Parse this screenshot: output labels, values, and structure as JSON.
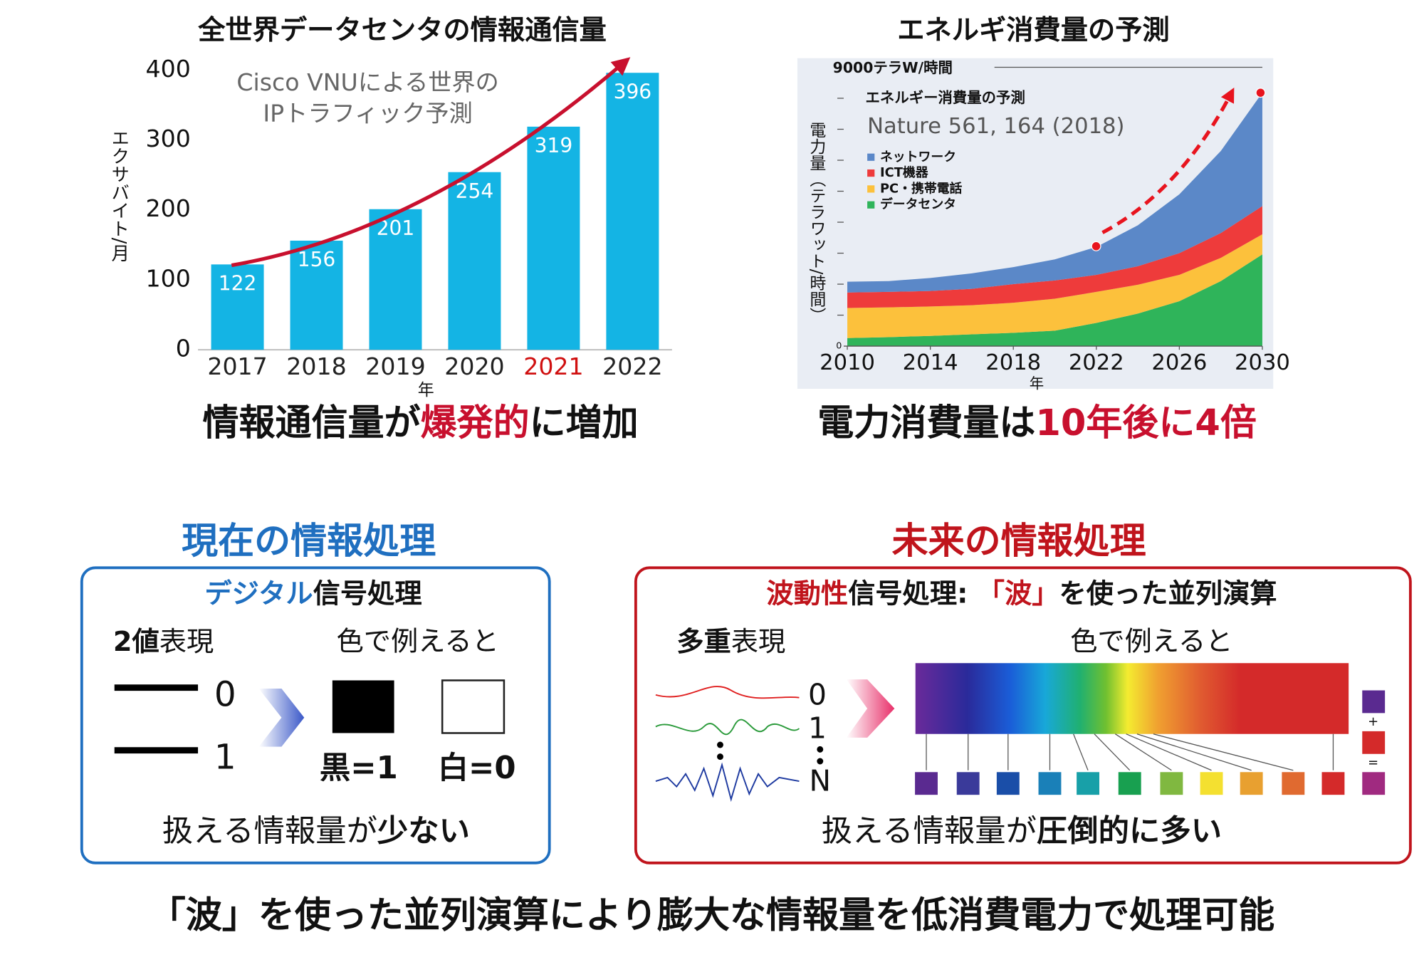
{
  "chart_data": [
    {
      "type": "bar",
      "title": "全世界データセンタの情報通信量",
      "annotation": [
        "Cisco VNUによる世界の",
        "IPトラフィック予測"
      ],
      "categories": [
        "2017",
        "2018",
        "2019",
        "2020",
        "2021",
        "2022"
      ],
      "values": [
        122,
        156,
        201,
        254,
        319,
        396
      ],
      "category_label_colors": [
        "#222",
        "#222",
        "#222",
        "#222",
        "#d01010",
        "#222"
      ],
      "color": "#14b4e4",
      "ylim": [
        0,
        400
      ],
      "yticks": [
        0,
        100,
        200,
        300,
        400
      ],
      "ylabel": "エクサバイト/月",
      "xlabel": "年"
    },
    {
      "type": "area",
      "stacked": true,
      "title": "エネルギ消費量の予測",
      "legend_title": "エネルギー消費量の予測",
      "subtitle": "Nature 561, 164 (2018)",
      "ylabel": "電力量（テラワット/時間）",
      "xlabel": "年",
      "x": [
        2010,
        2012,
        2014,
        2016,
        2018,
        2020,
        2022,
        2024,
        2026,
        2028,
        2030
      ],
      "xlim": [
        2010,
        2030
      ],
      "xticks": [
        2010,
        2014,
        2018,
        2022,
        2026,
        2030
      ],
      "ylim": [
        0,
        9000
      ],
      "yticks": [
        0,
        {
          "value": 9000,
          "label": "9000テラW/時間"
        }
      ],
      "minor_yticks": [
        1000,
        2000,
        3000,
        4000,
        5000,
        6000,
        7000,
        8000
      ],
      "series": [
        {
          "name": "ネットワーク",
          "color": "#5b88c8",
          "values": [
            350,
            350,
            420,
            500,
            550,
            680,
            900,
            1320,
            1900,
            2650,
            3660
          ]
        },
        {
          "name": "ICT機器",
          "color": "#ee3b3b",
          "values": [
            500,
            500,
            500,
            530,
            600,
            590,
            550,
            600,
            700,
            800,
            910
          ]
        },
        {
          "name": "PC・携帯電話",
          "color": "#fcc13c",
          "values": [
            970,
            960,
            950,
            940,
            970,
            1030,
            1000,
            930,
            850,
            750,
            650
          ]
        },
        {
          "name": "データセンタ",
          "color": "#2fb45a",
          "values": [
            260,
            290,
            330,
            380,
            430,
            500,
            750,
            1050,
            1450,
            2100,
            2960
          ]
        }
      ]
    }
  ],
  "captions": {
    "left": [
      "情報通信量が",
      "爆発的",
      "に増加"
    ],
    "right": [
      "電力消費量は",
      "10年後に4倍"
    ]
  },
  "current": {
    "heading": "現在の情報処理",
    "subtitle": [
      "デジタル",
      "信号処理"
    ],
    "label": [
      "2値",
      "表現"
    ],
    "analogy": "色で例えると",
    "digits": [
      "0",
      "1"
    ],
    "black": "黒=1",
    "white": "白=0",
    "footer": [
      "扱える情報量が",
      "少ない"
    ]
  },
  "future": {
    "heading": "未来の情報処理",
    "subtitle": [
      "波動性",
      "信号処理: ",
      "「波」",
      "を使った並列演算"
    ],
    "label": [
      "多重",
      "表現"
    ],
    "analogy": "色で例えると",
    "digits": [
      "0",
      "1",
      "N"
    ],
    "operators": [
      "+",
      "="
    ],
    "footer": [
      "扱える情報量が",
      "圧倒的に多い"
    ]
  },
  "conclusion": "「波」を使った並列演算により膨大な情報量を低消費電力で処理可能"
}
